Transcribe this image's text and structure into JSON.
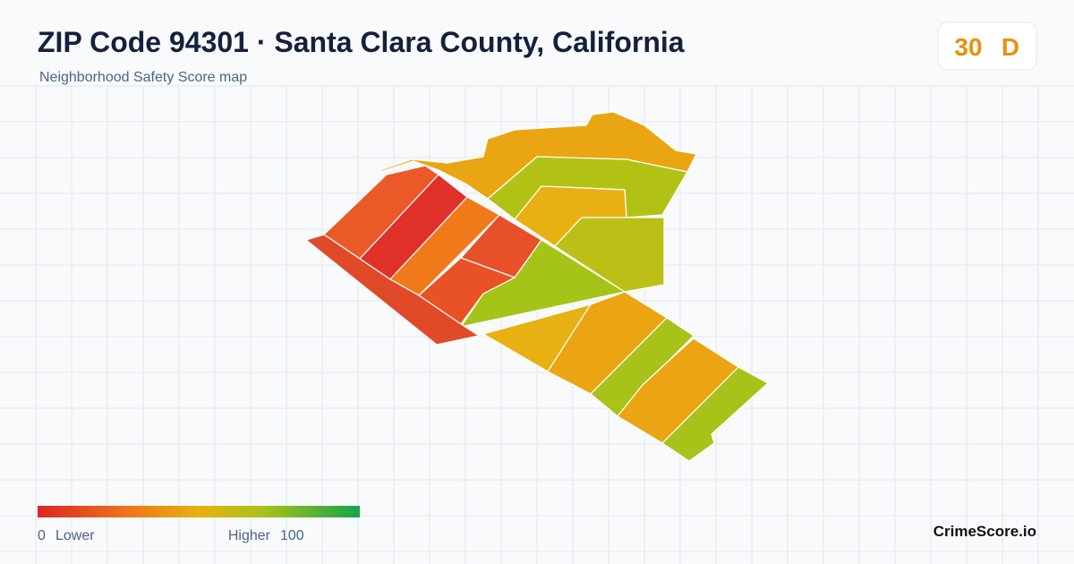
{
  "header": {
    "title": "ZIP Code 94301 · Santa Clara County, California",
    "subtitle": "Neighborhood Safety Score map",
    "score": 30,
    "grade": "D"
  },
  "legend": {
    "min": 0,
    "min_label": "Lower",
    "max_label": "Higher",
    "max": 100
  },
  "footer": {
    "brand": "CrimeScore.io"
  }
}
